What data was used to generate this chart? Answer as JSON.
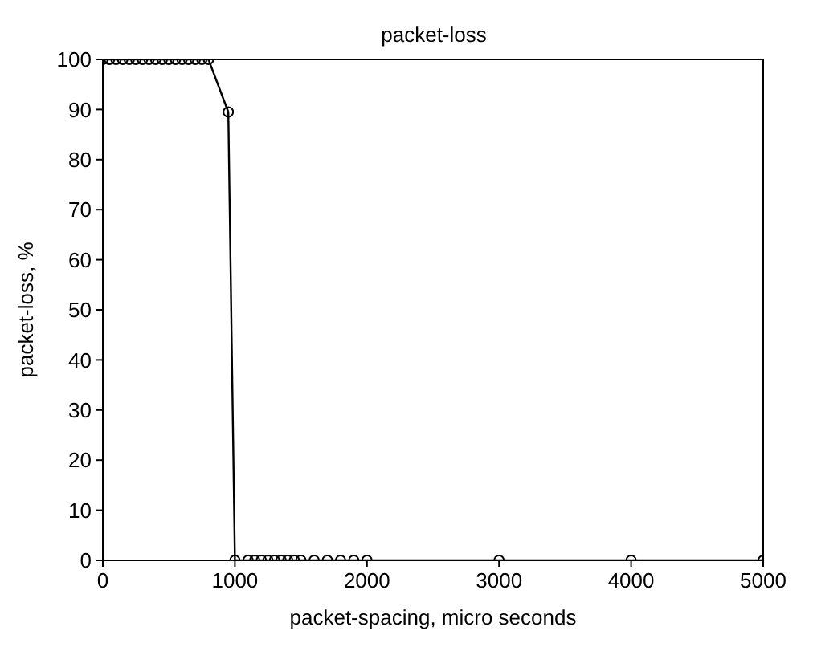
{
  "chart_data": {
    "type": "line",
    "title": "packet-loss",
    "xlabel": "packet-spacing, micro seconds",
    "ylabel": "packet-loss, %",
    "x": [
      0,
      50,
      100,
      150,
      200,
      250,
      300,
      350,
      400,
      450,
      500,
      550,
      600,
      650,
      700,
      750,
      800,
      950,
      1000,
      1100,
      1150,
      1200,
      1250,
      1300,
      1350,
      1400,
      1450,
      1500,
      1600,
      1700,
      1800,
      1900,
      2000,
      3000,
      4000,
      5000
    ],
    "series": [
      {
        "color": "#000000",
        "values": [
          100,
          100,
          100,
          100,
          100,
          100,
          100,
          100,
          100,
          100,
          100,
          100,
          100,
          100,
          100,
          100,
          100,
          89.5,
          0,
          0,
          0,
          0,
          0,
          0,
          0,
          0,
          0,
          0,
          0,
          0,
          0,
          0,
          0,
          0,
          0,
          0
        ]
      }
    ],
    "xlim": [
      0,
      5000
    ],
    "xticks": [
      0,
      1000,
      2000,
      3000,
      4000,
      5000
    ],
    "ylim": [
      0,
      100
    ],
    "yticks": [
      0,
      10,
      20,
      30,
      40,
      50,
      60,
      70,
      80,
      90,
      100
    ],
    "grid": false,
    "legend": false,
    "marker": "circle",
    "line_style": "solid"
  }
}
